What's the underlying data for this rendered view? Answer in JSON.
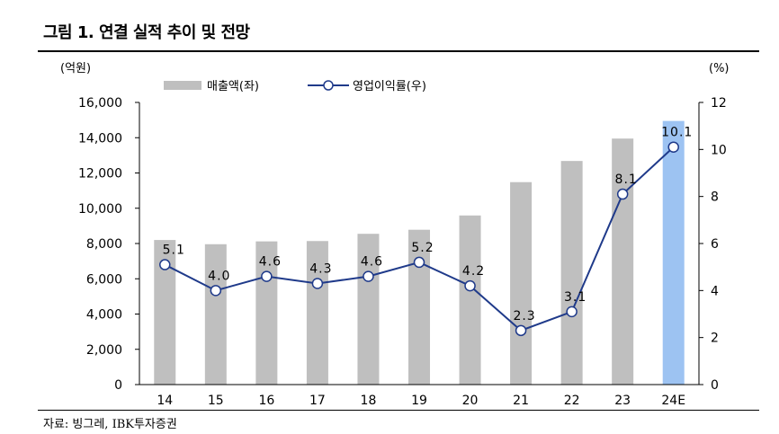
{
  "figure": {
    "title": "그림 1. 연결 실적 추이 및 전망",
    "source": "자료: 빙그레, IBK투자증권"
  },
  "chart_data": {
    "type": "bar",
    "categories": [
      "14",
      "15",
      "16",
      "17",
      "18",
      "19",
      "20",
      "21",
      "22",
      "23",
      "24E"
    ],
    "series": [
      {
        "name": "매출액(좌)",
        "kind": "bar",
        "axis": "left",
        "color": "#bfbfbf",
        "highlight_color": "#9dc3f2",
        "highlight_index": 10,
        "values": [
          8200,
          7960,
          8120,
          8140,
          8550,
          8780,
          9590,
          11480,
          12680,
          13950,
          14950
        ]
      },
      {
        "name": "영업이익률(우)",
        "kind": "line",
        "axis": "right",
        "color": "#1f3a8a",
        "values": [
          5.1,
          4.0,
          4.6,
          4.3,
          4.6,
          5.2,
          4.2,
          2.3,
          3.1,
          8.1,
          10.1
        ],
        "labels": [
          "5.1",
          "4.0",
          "4.6",
          "4.3",
          "4.6",
          "5.2",
          "4.2",
          "2.3",
          "3.1",
          "8.1",
          "10.1"
        ]
      }
    ],
    "left_axis": {
      "unit": "(억원)",
      "ylim": [
        0,
        16000
      ],
      "ticks": [
        "0",
        "2,000",
        "4,000",
        "6,000",
        "8,000",
        "10,000",
        "12,000",
        "14,000",
        "16,000"
      ]
    },
    "right_axis": {
      "unit": "(%)",
      "ylim": [
        0,
        12
      ],
      "ticks": [
        "0",
        "2",
        "4",
        "6",
        "8",
        "10",
        "12"
      ]
    },
    "grid": false,
    "legend_position": "top-left"
  }
}
